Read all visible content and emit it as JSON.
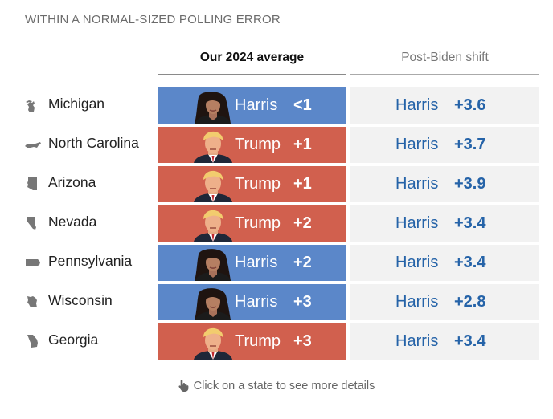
{
  "header": {
    "title": "WITHIN A NORMAL-SIZED POLLING ERROR"
  },
  "columns": {
    "average": "Our 2024 average",
    "shift": "Post-Biden shift"
  },
  "colors": {
    "harris": "#5b87c9",
    "trump": "#d1604e",
    "shift_text": "#2563a8",
    "shift_bg": "#f2f2f2"
  },
  "rows": [
    {
      "state": "Michigan",
      "icon": "michigan-icon",
      "avg_candidate": "Harris",
      "avg_margin": "<1",
      "portrait": "harris-portrait",
      "shift_candidate": "Harris",
      "shift_margin": "+3.6"
    },
    {
      "state": "North Carolina",
      "icon": "north-carolina-icon",
      "avg_candidate": "Trump",
      "avg_margin": "+1",
      "portrait": "trump-portrait",
      "shift_candidate": "Harris",
      "shift_margin": "+3.7"
    },
    {
      "state": "Arizona",
      "icon": "arizona-icon",
      "avg_candidate": "Trump",
      "avg_margin": "+1",
      "portrait": "trump-portrait",
      "shift_candidate": "Harris",
      "shift_margin": "+3.9"
    },
    {
      "state": "Nevada",
      "icon": "nevada-icon",
      "avg_candidate": "Trump",
      "avg_margin": "+2",
      "portrait": "trump-portrait",
      "shift_candidate": "Harris",
      "shift_margin": "+3.4"
    },
    {
      "state": "Pennsylvania",
      "icon": "pennsylvania-icon",
      "avg_candidate": "Harris",
      "avg_margin": "+2",
      "portrait": "harris-portrait",
      "shift_candidate": "Harris",
      "shift_margin": "+3.4"
    },
    {
      "state": "Wisconsin",
      "icon": "wisconsin-icon",
      "avg_candidate": "Harris",
      "avg_margin": "+3",
      "portrait": "harris-portrait",
      "shift_candidate": "Harris",
      "shift_margin": "+2.8"
    },
    {
      "state": "Georgia",
      "icon": "georgia-icon",
      "avg_candidate": "Trump",
      "avg_margin": "+3",
      "portrait": "trump-portrait",
      "shift_candidate": "Harris",
      "shift_margin": "+3.4"
    }
  ],
  "footer": {
    "hint": "Click on a state to see more details",
    "icon": "pointer-hand-icon"
  }
}
